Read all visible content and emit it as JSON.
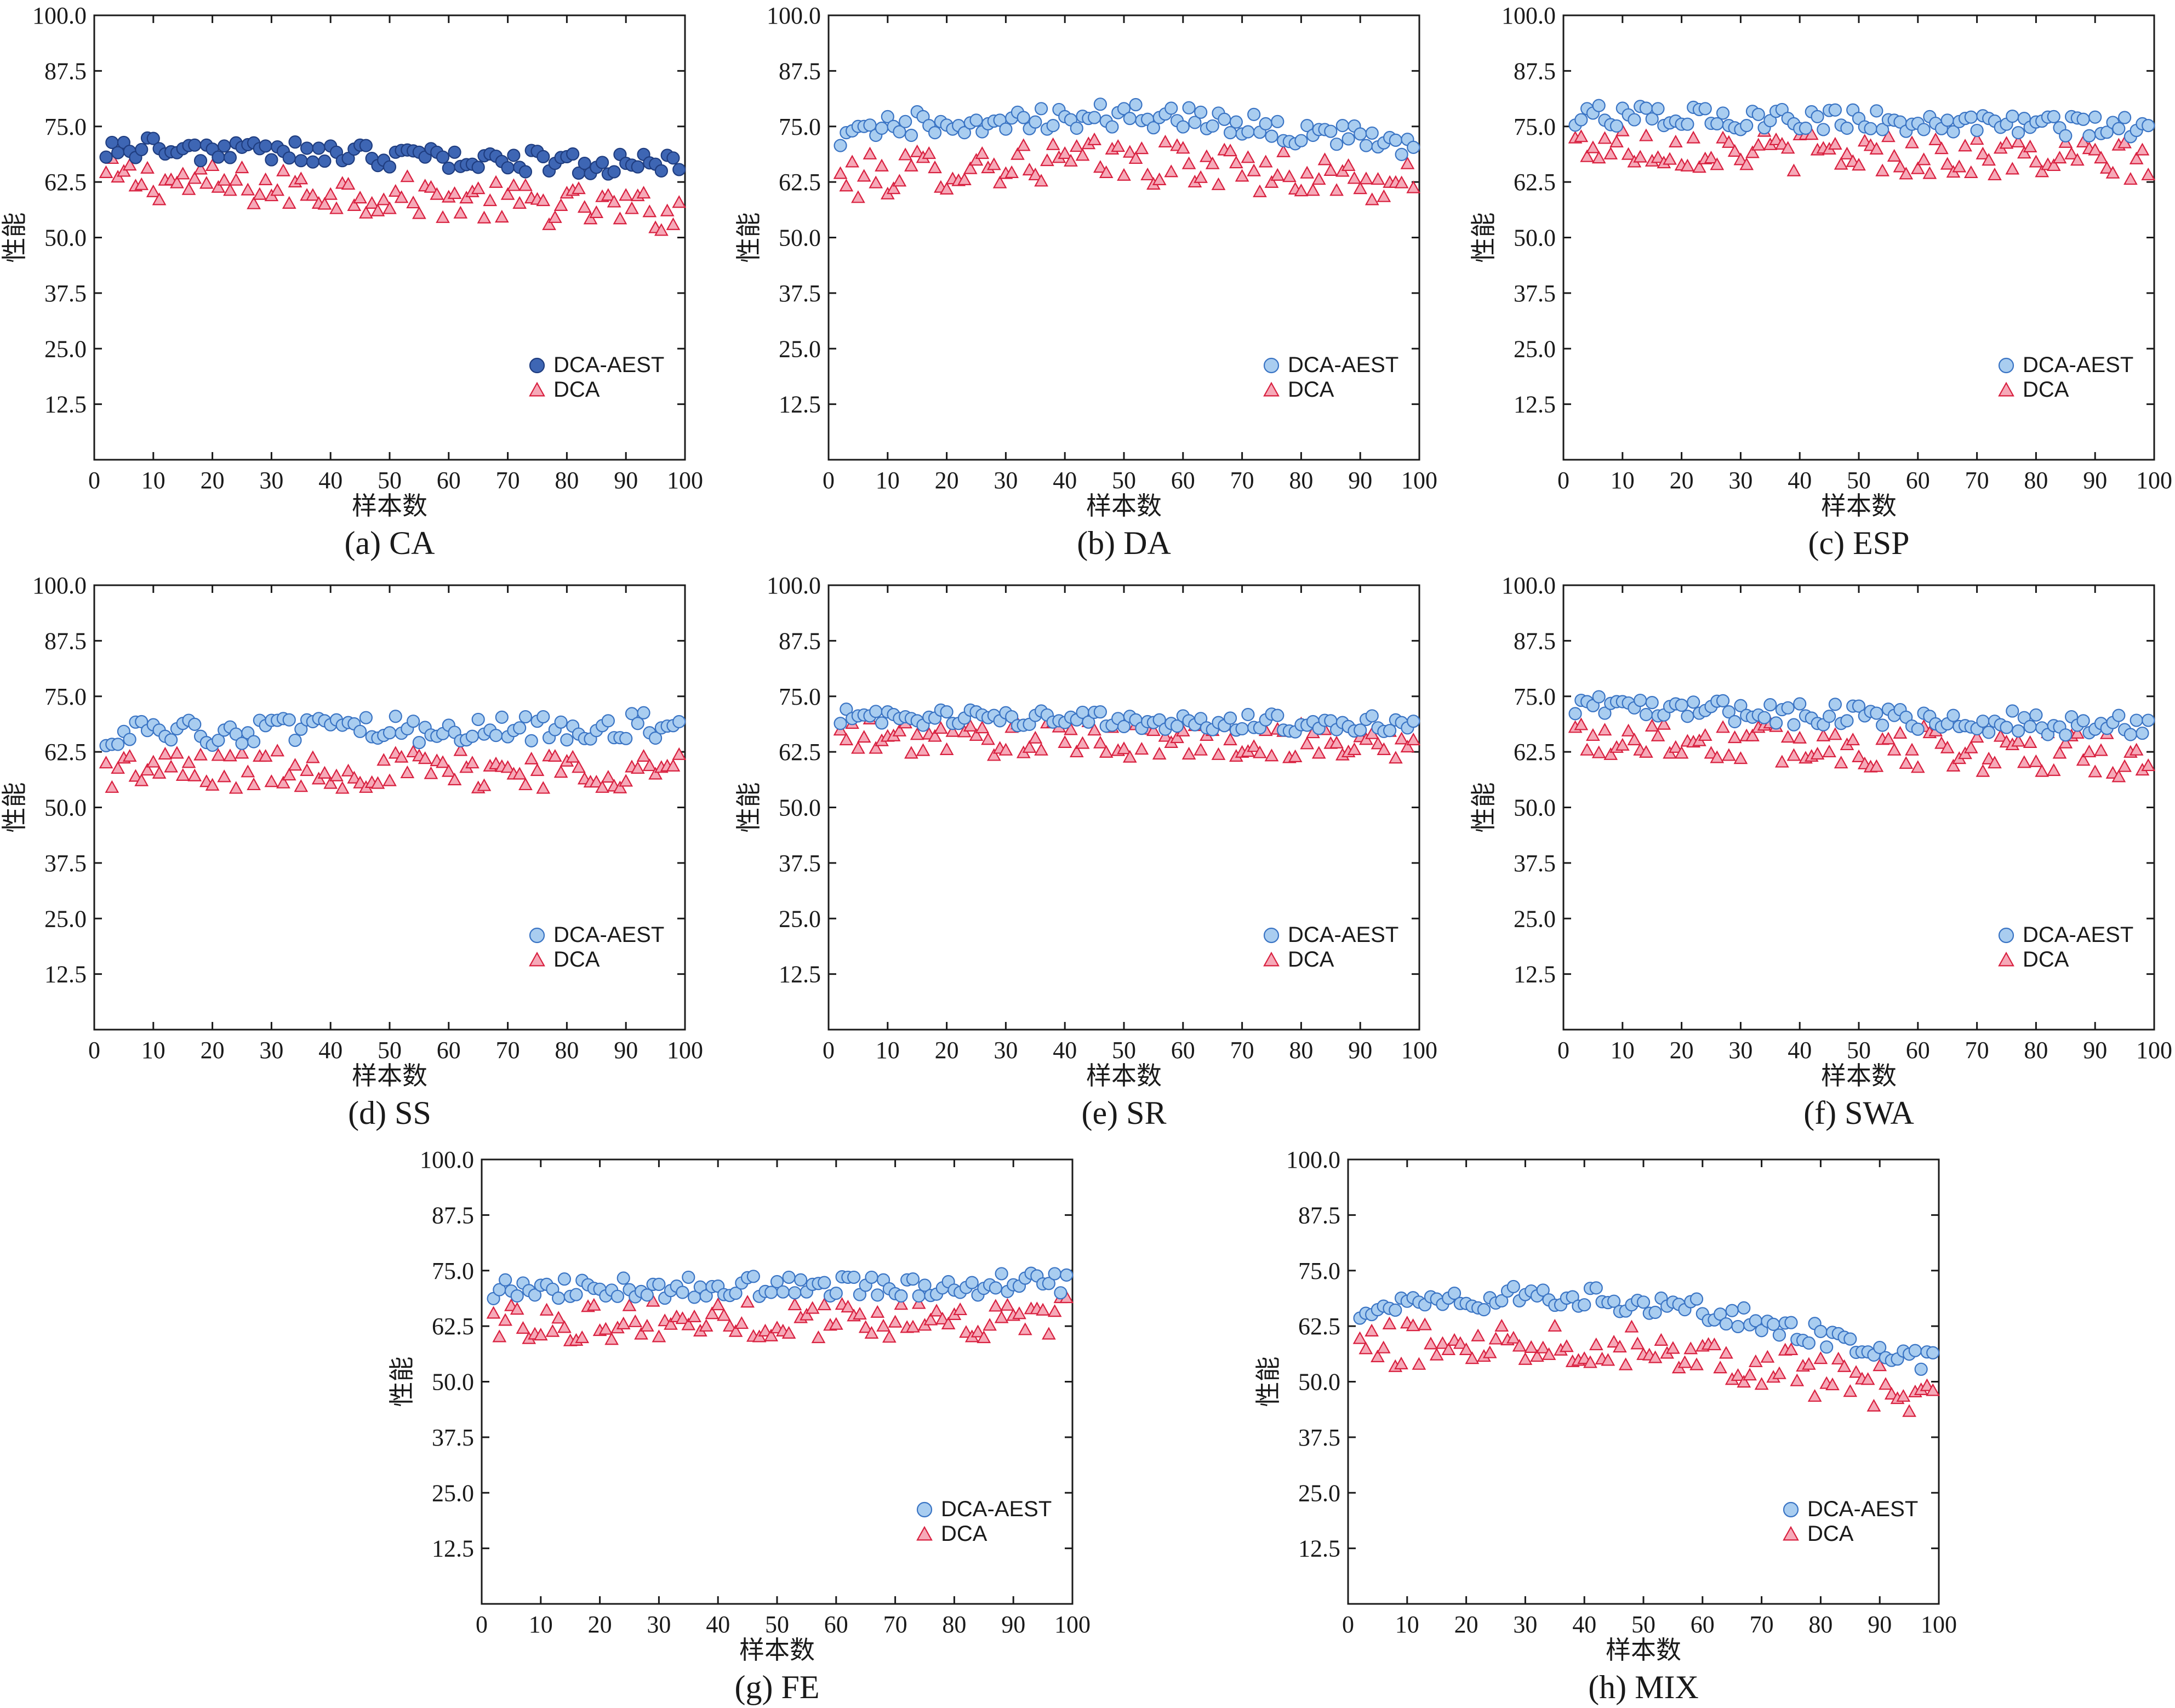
{
  "figure": {
    "xlabel": "样本数",
    "ylabel": "性能",
    "ylim": [
      0,
      100
    ],
    "xlim": [
      0,
      100
    ],
    "yticks": [
      "100.0",
      "87.5",
      "75.0",
      "62.5",
      "50.0",
      "37.5",
      "25.0",
      "12.5"
    ],
    "xticks": [
      "0",
      "10",
      "20",
      "30",
      "40",
      "50",
      "60",
      "70",
      "80",
      "90",
      "100"
    ],
    "legend_position": "bottom-right",
    "series_names": [
      "DCA-AEST",
      "DCA"
    ],
    "colors": {
      "light_fill": "#a9cdf0",
      "light_stroke": "#3a74c4",
      "dark_fill": "#3e66b4",
      "dark_stroke": "#1f3d80",
      "dca_fill": "#f6a9b8",
      "dca_stroke": "#d8203f"
    }
  },
  "chart_data": [
    {
      "type": "scatter",
      "caption": "(a) CA",
      "marker_style": "dark",
      "series": [
        {
          "name": "DCA-AEST",
          "start": 70.5,
          "end": 66.0,
          "amp": 2.5,
          "dip": null
        },
        {
          "name": "DCA",
          "start": 63.5,
          "end": 55.5,
          "amp": 4.5
        }
      ]
    },
    {
      "type": "scatter",
      "caption": "(b) DA",
      "marker_style": "light",
      "series": [
        {
          "name": "DCA-AEST",
          "start": 73.5,
          "end": 70.5,
          "amp": 3.0,
          "bump": 78.0
        },
        {
          "name": "DCA",
          "start": 63.0,
          "end": 61.5,
          "amp": 5.0,
          "bump": 68.0
        }
      ]
    },
    {
      "type": "scatter",
      "caption": "(c) ESP",
      "marker_style": "light",
      "series": [
        {
          "name": "DCA-AEST",
          "start": 77.5,
          "end": 75.0,
          "amp": 2.5
        },
        {
          "name": "DCA",
          "start": 71.0,
          "end": 67.0,
          "amp": 4.5
        }
      ]
    },
    {
      "type": "scatter",
      "caption": "(d) SS",
      "marker_style": "light",
      "series": [
        {
          "name": "DCA-AEST",
          "start": 66.5,
          "end": 68.5,
          "amp": 3.0
        },
        {
          "name": "DCA",
          "start": 58.5,
          "end": 58.5,
          "amp": 4.5
        }
      ]
    },
    {
      "type": "scatter",
      "caption": "(e) SR",
      "marker_style": "light",
      "series": [
        {
          "name": "DCA-AEST",
          "start": 70.5,
          "end": 68.5,
          "amp": 2.0
        },
        {
          "name": "DCA",
          "start": 66.0,
          "end": 64.5,
          "amp": 4.0
        }
      ]
    },
    {
      "type": "scatter",
      "caption": "(f) SWA",
      "marker_style": "light",
      "series": [
        {
          "name": "DCA-AEST",
          "start": 73.0,
          "end": 68.0,
          "amp": 2.5
        },
        {
          "name": "DCA",
          "start": 66.0,
          "end": 61.5,
          "amp": 5.0
        }
      ]
    },
    {
      "type": "scatter",
      "caption": "(g) FE",
      "marker_style": "light",
      "series": [
        {
          "name": "DCA-AEST",
          "start": 70.5,
          "end": 72.0,
          "amp": 2.5
        },
        {
          "name": "DCA",
          "start": 63.5,
          "end": 64.5,
          "amp": 4.5
        }
      ]
    },
    {
      "type": "scatter",
      "caption": "(h) MIX",
      "marker_style": "light",
      "series": [
        {
          "name": "DCA-AEST",
          "start": 66.0,
          "end": 54.0,
          "amp": 2.5,
          "bump": 69.0
        },
        {
          "name": "DCA",
          "start": 57.5,
          "end": 46.0,
          "amp": 5.0,
          "bump": 59.0
        }
      ]
    }
  ]
}
